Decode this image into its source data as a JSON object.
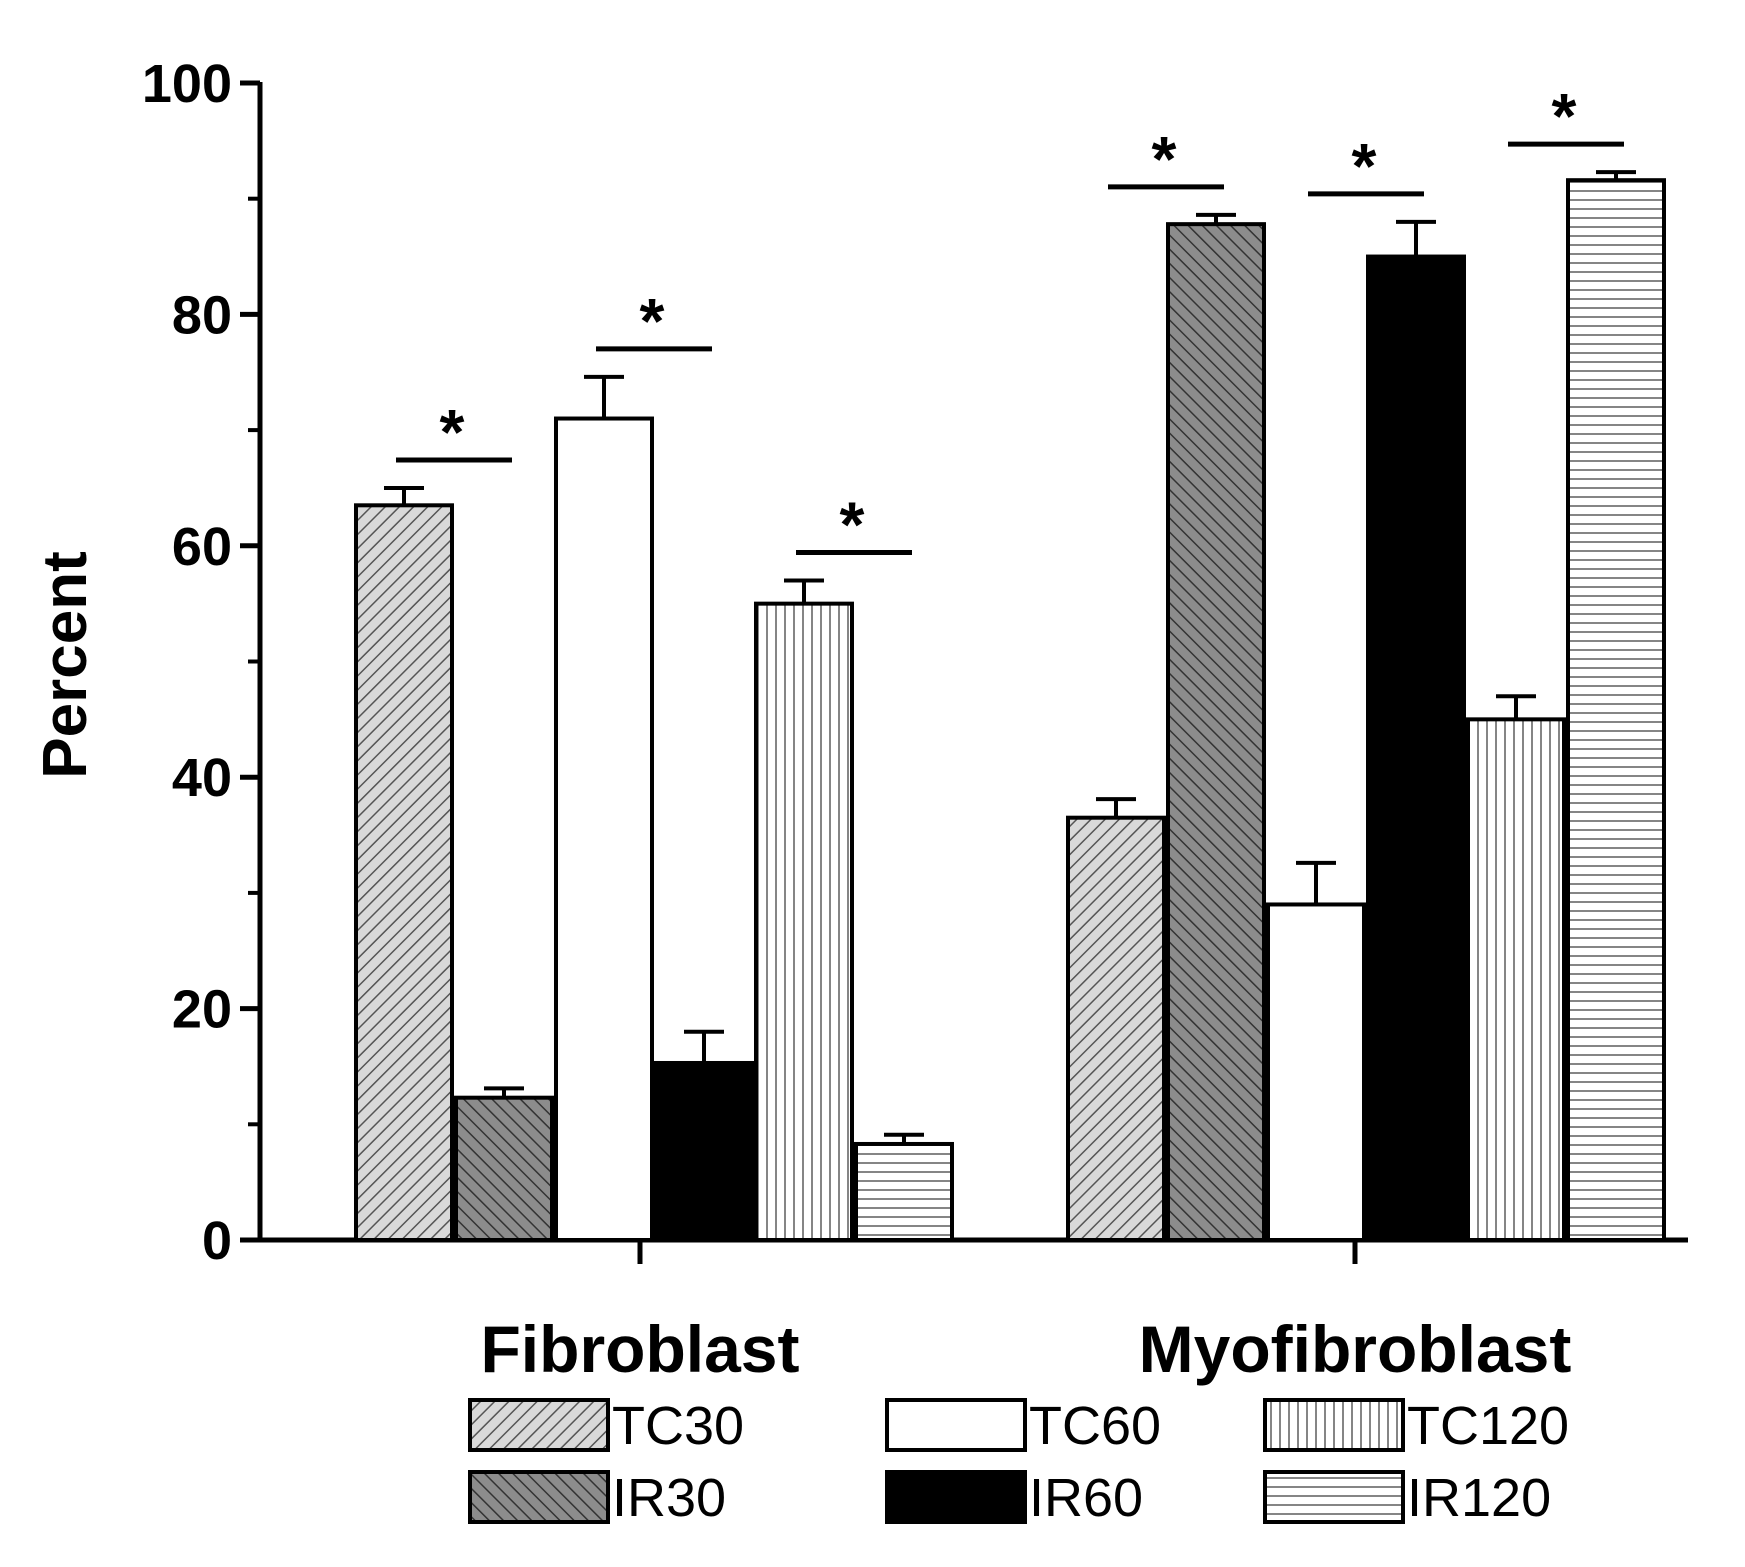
{
  "chart_data": {
    "type": "bar",
    "title": "",
    "xlabel": "",
    "ylabel": "Percent",
    "ylim": [
      0,
      100
    ],
    "yticks": [
      0,
      20,
      40,
      60,
      80,
      100
    ],
    "categories": [
      "Fibroblast",
      "Myofibroblast"
    ],
    "series": [
      {
        "name": "TC30",
        "pattern": "diag-light",
        "values": [
          63.5,
          36.5
        ],
        "errors": [
          1.5,
          1.6
        ]
      },
      {
        "name": "IR30",
        "pattern": "diag-dark",
        "values": [
          12.3,
          87.8
        ],
        "errors": [
          0.8,
          0.8
        ]
      },
      {
        "name": "TC60",
        "pattern": "solid-white",
        "values": [
          71.0,
          29.0
        ],
        "errors": [
          3.6,
          3.6
        ]
      },
      {
        "name": "IR60",
        "pattern": "solid-black",
        "values": [
          15.3,
          85.0
        ],
        "errors": [
          2.7,
          3.0
        ]
      },
      {
        "name": "TC120",
        "pattern": "vlines",
        "values": [
          55.0,
          45.0
        ],
        "errors": [
          2.0,
          2.0
        ]
      },
      {
        "name": "IR120",
        "pattern": "hlines",
        "values": [
          8.3,
          91.6
        ],
        "errors": [
          0.8,
          0.7
        ]
      }
    ],
    "significance": [
      {
        "label": "*",
        "category": "Fibroblast",
        "pair": [
          "TC30",
          "IR30"
        ]
      },
      {
        "label": "*",
        "category": "Fibroblast",
        "pair": [
          "TC60",
          "IR60"
        ]
      },
      {
        "label": "*",
        "category": "Fibroblast",
        "pair": [
          "TC120",
          "IR120"
        ]
      },
      {
        "label": "*",
        "category": "Myofibroblast",
        "pair": [
          "TC30",
          "IR30"
        ]
      },
      {
        "label": "*",
        "category": "Myofibroblast",
        "pair": [
          "TC60",
          "IR60"
        ]
      },
      {
        "label": "*",
        "category": "Myofibroblast",
        "pair": [
          "TC120",
          "IR120"
        ]
      }
    ],
    "legend": {
      "placement": "bottom",
      "entries": [
        "TC30",
        "IR30",
        "TC60",
        "IR60",
        "TC120",
        "IR120"
      ]
    },
    "colors": {
      "axis": "#000000",
      "diag_light_bg": "#d9d9d9",
      "diag_dark_bg": "#8c8c8c",
      "bar_black": "#000000",
      "bar_white": "#ffffff"
    }
  }
}
